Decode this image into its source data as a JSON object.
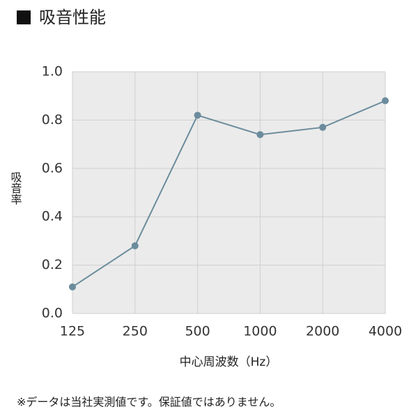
{
  "chart_data": {
    "type": "line",
    "title": "吸音性能",
    "categories": [
      "125",
      "250",
      "500",
      "1000",
      "2000",
      "4000"
    ],
    "series": [
      {
        "name": "吸音率",
        "color": "#6b8c9c",
        "values": [
          0.11,
          0.28,
          0.82,
          0.74,
          0.77,
          0.88
        ]
      }
    ],
    "ylabel": "吸音率",
    "xlabel": "中心周波数（Hz）",
    "ylim": [
      0,
      1
    ],
    "yticks": [
      {
        "value": 0,
        "label": "0.0"
      },
      0.2,
      0.4,
      0.6,
      0.8,
      {
        "value": 1,
        "label": "1.0"
      }
    ],
    "grid": true,
    "footnote": "※データは当社実測値です。保証値ではありません。"
  }
}
